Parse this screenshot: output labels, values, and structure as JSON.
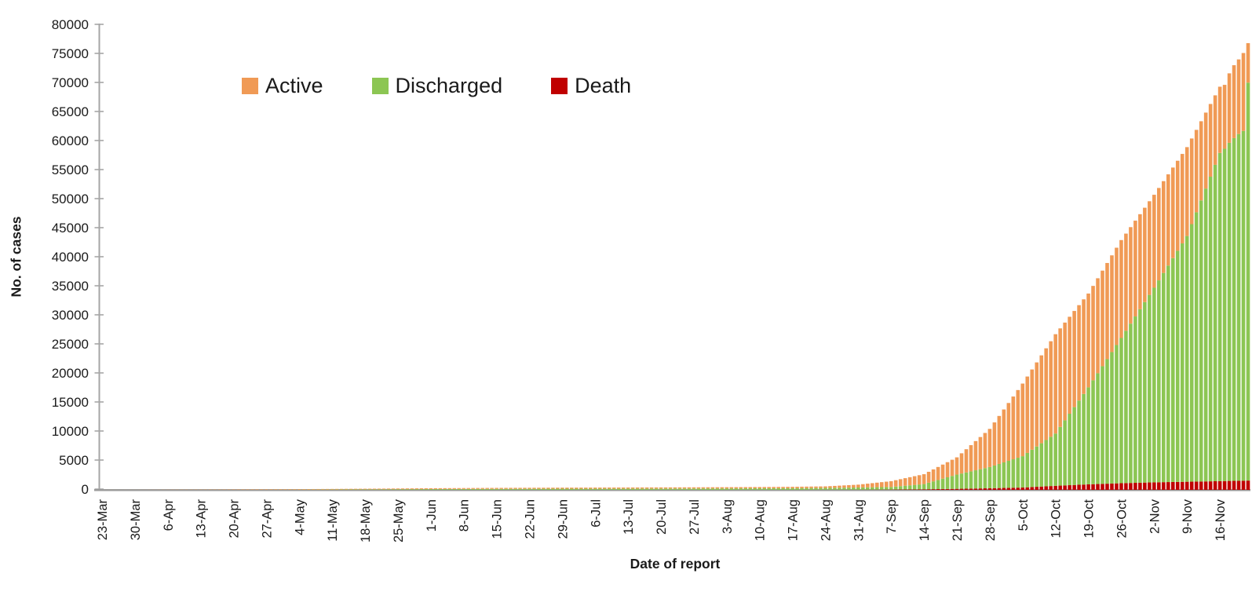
{
  "chart_data": {
    "type": "bar",
    "stacked": true,
    "title": "",
    "xlabel": "Date of report",
    "ylabel": "No. of cases",
    "ylim": [
      0,
      80000
    ],
    "ytick_step": 5000,
    "grid": false,
    "bar_resolution": "daily",
    "num_days": 245,
    "x_tick_every_days": 7,
    "x_tick_labels": [
      "23-Mar",
      "30-Mar",
      "6-Apr",
      "13-Apr",
      "20-Apr",
      "27-Apr",
      "4-May",
      "11-May",
      "18-May",
      "25-May",
      "1-Jun",
      "8-Jun",
      "15-Jun",
      "22-Jun",
      "29-Jun",
      "6-Jul",
      "13-Jul",
      "20-Jul",
      "27-Jul",
      "3-Aug",
      "10-Aug",
      "17-Aug",
      "24-Aug",
      "31-Aug",
      "7-Sep",
      "14-Sep",
      "21-Sep",
      "28-Sep",
      "5-Oct",
      "12-Oct",
      "19-Oct",
      "26-Oct",
      "2-Nov",
      "9-Nov",
      "16-Nov"
    ],
    "stack_order_bottom_to_top": [
      "Death",
      "Discharged",
      "Active"
    ],
    "legend": {
      "position": "inside-top-left",
      "entries": [
        {
          "label": "Active",
          "color": "#F09A55"
        },
        {
          "label": "Discharged",
          "color": "#8CC653"
        },
        {
          "label": "Death",
          "color": "#C00000"
        }
      ]
    },
    "series_anchor_points": {
      "day_index_from_first_bar": [
        0,
        7,
        14,
        21,
        28,
        35,
        42,
        49,
        56,
        63,
        70,
        77,
        84,
        91,
        98,
        105,
        112,
        119,
        126,
        133,
        140,
        147,
        154,
        161,
        168,
        175,
        182,
        189,
        196,
        203,
        210,
        217,
        224,
        231,
        238,
        239,
        240,
        241,
        242,
        243,
        244
      ],
      "Death": [
        0,
        0,
        0,
        0,
        1,
        1,
        1,
        2,
        2,
        3,
        3,
        4,
        5,
        5,
        6,
        6,
        7,
        8,
        9,
        10,
        12,
        15,
        20,
        30,
        50,
        100,
        180,
        280,
        400,
        700,
        950,
        1150,
        1300,
        1400,
        1500,
        1520,
        1540,
        1550,
        1560,
        1580,
        1600
      ],
      "Discharged": [
        0,
        1,
        2,
        5,
        10,
        20,
        35,
        55,
        80,
        105,
        130,
        150,
        170,
        185,
        195,
        205,
        215,
        225,
        235,
        245,
        260,
        280,
        310,
        380,
        450,
        900,
        2450,
        3650,
        5400,
        9000,
        16700,
        25000,
        33500,
        42300,
        56500,
        57200,
        58200,
        59000,
        59700,
        60200,
        68500
      ],
      "Active": [
        2,
        9,
        23,
        40,
        59,
        79,
        94,
        103,
        118,
        132,
        147,
        156,
        165,
        170,
        179,
        184,
        188,
        192,
        196,
        205,
        218,
        235,
        270,
        490,
        1000,
        1700,
        2970,
        6570,
        12500,
        17100,
        16150,
        16850,
        16000,
        15300,
        11400,
        11000,
        11960,
        12550,
        12840,
        13420,
        6800
      ]
    },
    "axis_color": "#A6A6A6",
    "label_color": "#1a1a1a"
  }
}
